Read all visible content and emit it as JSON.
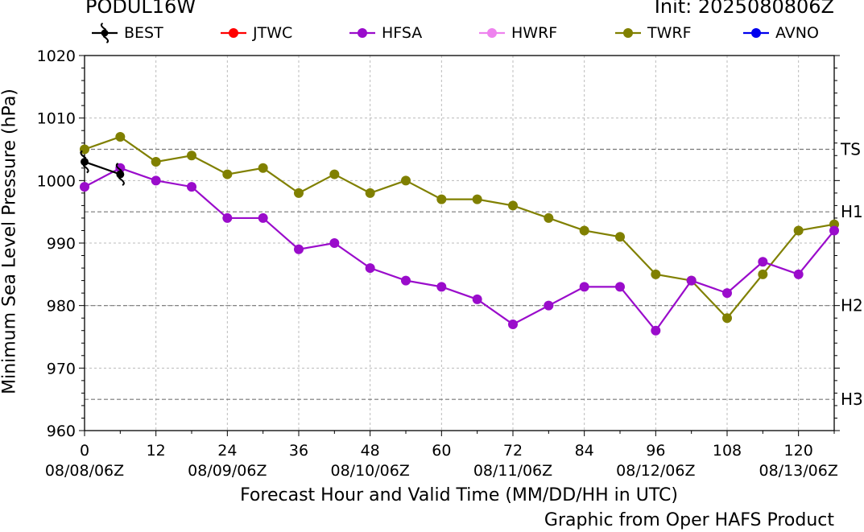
{
  "header": {
    "storm_id": "PODUL16W",
    "init": "Init: 2025080806Z"
  },
  "footer": {
    "xlabel": "Forecast Hour and Valid Time (MM/DD/HH in UTC)",
    "credit": "Graphic from Oper HAFS Product"
  },
  "chart_data": {
    "type": "line",
    "ylabel": "Minimum Sea Level Pressure (hPa)",
    "xlabel": "Forecast Hour and Valid Time (MM/DD/HH in UTC)",
    "xlim": [
      0,
      126
    ],
    "ylim": [
      960,
      1020
    ],
    "x_ticks": [
      0,
      12,
      24,
      36,
      48,
      60,
      72,
      84,
      96,
      108,
      120
    ],
    "y_ticks": [
      960,
      970,
      980,
      990,
      1000,
      1010,
      1020
    ],
    "date_ticks": [
      {
        "x": 0,
        "label": "08/08/06Z"
      },
      {
        "x": 24,
        "label": "08/09/06Z"
      },
      {
        "x": 48,
        "label": "08/10/06Z"
      },
      {
        "x": 72,
        "label": "08/11/06Z"
      },
      {
        "x": 96,
        "label": "08/12/06Z"
      },
      {
        "x": 120,
        "label": "08/13/06Z"
      }
    ],
    "thresholds": [
      {
        "label": "TS",
        "value": 1005
      },
      {
        "label": "H1",
        "value": 995
      },
      {
        "label": "H2",
        "value": 980
      },
      {
        "label": "H3",
        "value": 965
      }
    ],
    "grid": true,
    "legend_position": "top",
    "legend": [
      {
        "name": "BEST",
        "color": "#000000",
        "marker": "hurricane-symbol-icon"
      },
      {
        "name": "JTWC",
        "color": "#ff0000",
        "marker": "circle"
      },
      {
        "name": "HFSA",
        "color": "#9a0ccb",
        "marker": "circle"
      },
      {
        "name": "HWRF",
        "color": "#ee82ee",
        "marker": "circle"
      },
      {
        "name": "TWRF",
        "color": "#808000",
        "marker": "circle"
      },
      {
        "name": "AVNO",
        "color": "#0000ee",
        "marker": "circle"
      }
    ],
    "series": [
      {
        "name": "TWRF",
        "color": "#808000",
        "x": [
          0,
          6,
          12,
          18,
          24,
          30,
          36,
          42,
          48,
          54,
          60,
          66,
          72,
          78,
          84,
          90,
          96,
          102,
          108,
          114,
          120,
          126
        ],
        "values": [
          1005,
          1007,
          1003,
          1004,
          1001,
          1002,
          998,
          1001,
          998,
          1000,
          997,
          997,
          996,
          994,
          992,
          991,
          985,
          984,
          978,
          985,
          992,
          993
        ]
      },
      {
        "name": "HFSA",
        "color": "#9a0ccb",
        "x": [
          0,
          6,
          12,
          18,
          24,
          30,
          36,
          42,
          48,
          54,
          60,
          66,
          72,
          78,
          84,
          90,
          96,
          102,
          108,
          114,
          120,
          126
        ],
        "values": [
          999,
          1002,
          1000,
          999,
          994,
          994,
          989,
          990,
          986,
          984,
          983,
          981,
          977,
          980,
          983,
          983,
          976,
          984,
          982,
          987,
          985,
          992
        ]
      },
      {
        "name": "BEST",
        "color": "#000000",
        "x": [
          0,
          6
        ],
        "values": [
          1003,
          1001
        ]
      }
    ]
  }
}
